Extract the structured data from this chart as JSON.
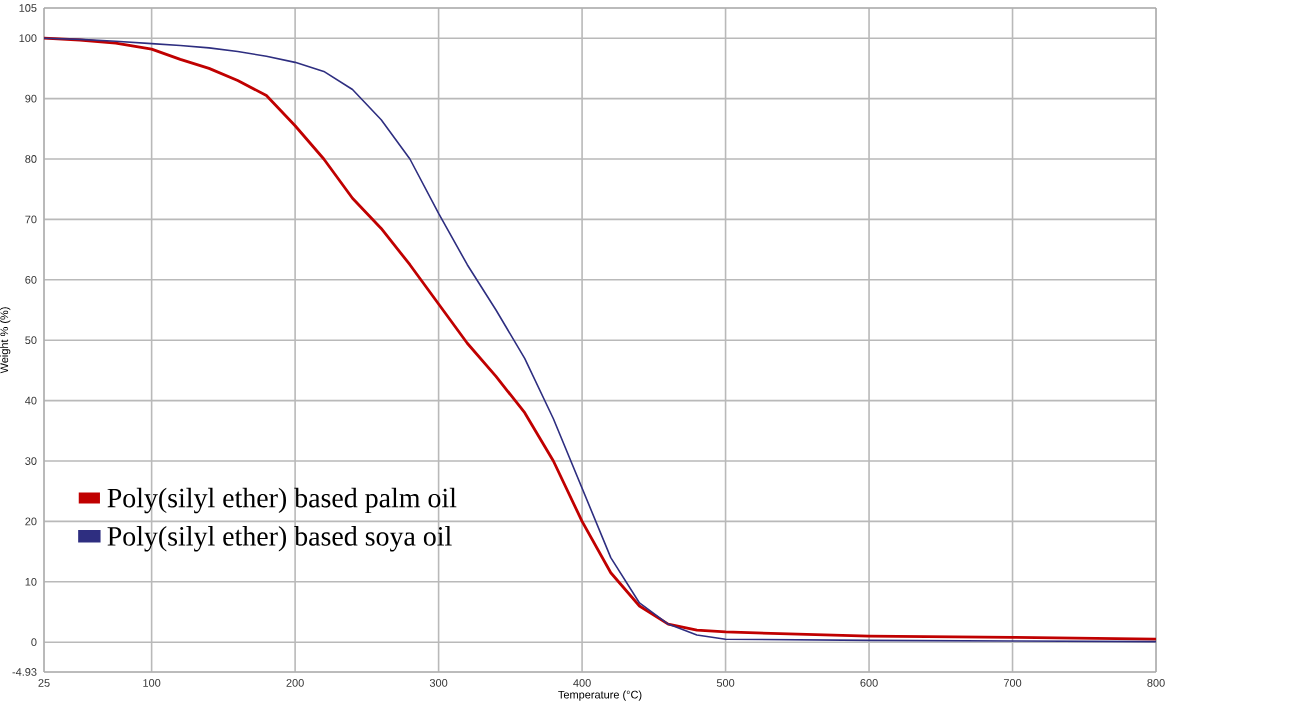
{
  "chart_data": {
    "type": "line",
    "xlabel": "Temperature (°C)",
    "ylabel": "Weight % (%)",
    "xlim": [
      25,
      800
    ],
    "ylim": [
      -4.93,
      105
    ],
    "xticks": [
      25,
      100,
      200,
      300,
      400,
      500,
      600,
      700,
      800
    ],
    "yticks": [
      -4.93,
      0,
      10,
      20,
      30,
      40,
      50,
      60,
      70,
      80,
      90,
      100,
      105
    ],
    "grid": true,
    "legend": "left",
    "line_style": "solid",
    "marker": "none",
    "x": [
      25,
      50,
      75,
      100,
      120,
      140,
      160,
      180,
      200,
      220,
      240,
      260,
      280,
      300,
      320,
      340,
      360,
      380,
      400,
      420,
      440,
      460,
      480,
      500,
      600,
      700,
      800
    ],
    "series": [
      {
        "name": "Poly(silyl ether) based palm oil",
        "color": "#c00000",
        "values": [
          100,
          99.7,
          99.2,
          98.2,
          96.5,
          95,
          93,
          90.5,
          85.5,
          80,
          73.5,
          68.5,
          62.5,
          56,
          49.5,
          44,
          38,
          30,
          20,
          11.5,
          6,
          3,
          2,
          1.7,
          1.0,
          0.8,
          0.5
        ]
      },
      {
        "name": "Poly(silyl ether) based soya oil",
        "color": "#2e2e80",
        "values": [
          100,
          99.8,
          99.5,
          99.1,
          98.8,
          98.4,
          97.8,
          97,
          96,
          94.5,
          91.5,
          86.5,
          80,
          71,
          62.5,
          55,
          47,
          37,
          25.5,
          14,
          6.5,
          3,
          1.2,
          0.5,
          0.3,
          0.2,
          0.1
        ]
      }
    ]
  }
}
